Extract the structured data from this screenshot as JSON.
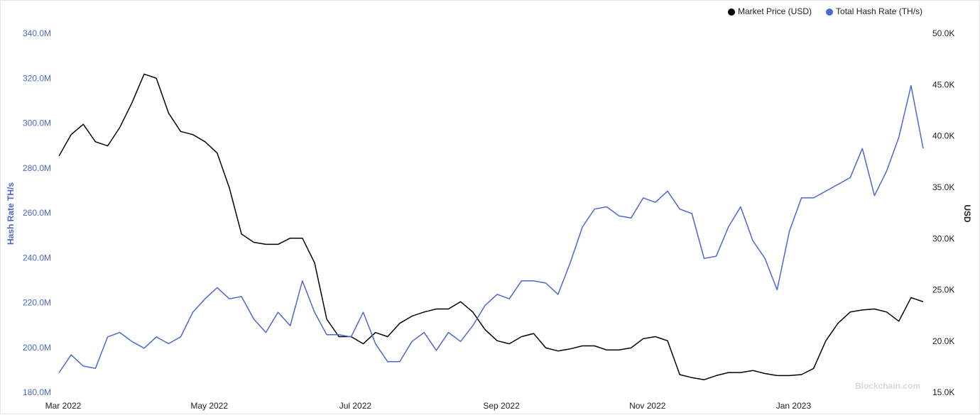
{
  "chart_data": {
    "type": "line",
    "y_label": "Hash Rate TH/s",
    "y2_label": "USD",
    "watermark": "Blockchain.com",
    "legend": "top-right",
    "categories": [
      "Mar 2022",
      null,
      null,
      null,
      null,
      null,
      null,
      null,
      null,
      null,
      null,
      null,
      "May 2022",
      null,
      null,
      null,
      null,
      null,
      null,
      null,
      null,
      null,
      null,
      null,
      "Jul 2022",
      null,
      null,
      null,
      null,
      null,
      null,
      null,
      null,
      null,
      null,
      null,
      "Sep 2022",
      null,
      null,
      null,
      null,
      null,
      null,
      null,
      null,
      null,
      null,
      null,
      "Nov 2022",
      null,
      null,
      null,
      null,
      null,
      null,
      null,
      null,
      null,
      null,
      null,
      "Jan 2023",
      null,
      null,
      null,
      null,
      null,
      null,
      null,
      null,
      null,
      null,
      null
    ],
    "series": [
      {
        "name": "Market Price (USD)",
        "color": "#000000",
        "axis": "y2",
        "values": [
          38100,
          40200,
          41200,
          39500,
          39100,
          40900,
          43300,
          46100,
          45700,
          42300,
          40500,
          40200,
          39500,
          38400,
          35000,
          30500,
          29700,
          29500,
          29500,
          30100,
          30100,
          27700,
          22200,
          20500,
          20500,
          19800,
          20900,
          20500,
          21800,
          22500,
          22900,
          23200,
          23200,
          23900,
          22900,
          21200,
          20100,
          19800,
          20500,
          20800,
          19400,
          19100,
          19300,
          19600,
          19600,
          19200,
          19200,
          19400,
          20300,
          20500,
          20100,
          16800,
          16500,
          16300,
          16700,
          17000,
          17000,
          17200,
          16900,
          16700,
          16700,
          16800,
          17400,
          20100,
          21800,
          22900,
          23100,
          23200,
          22900,
          22000,
          24300,
          23900
        ]
      },
      {
        "name": "Total Hash Rate (TH/s)",
        "color": "#4b67d1",
        "values": [
          189000000,
          197000000,
          192000000,
          191000000,
          205000000,
          207000000,
          203000000,
          200000000,
          205000000,
          202000000,
          205000000,
          216000000,
          222000000,
          227000000,
          222000000,
          223000000,
          213000000,
          207000000,
          216000000,
          210000000,
          230000000,
          216000000,
          206000000,
          206000000,
          205000000,
          216000000,
          202000000,
          194000000,
          194000000,
          203000000,
          207000000,
          199000000,
          207000000,
          203000000,
          210000000,
          219000000,
          224000000,
          222000000,
          230000000,
          230000000,
          229000000,
          224000000,
          238000000,
          254000000,
          262000000,
          263000000,
          259000000,
          258000000,
          267000000,
          265000000,
          270000000,
          262000000,
          260000000,
          240000000,
          241000000,
          254000000,
          263000000,
          248000000,
          240000000,
          226000000,
          252000000,
          267000000,
          267000000,
          270000000,
          273000000,
          276000000,
          289000000,
          268000000,
          279000000,
          294000000,
          317000000,
          289000000
        ]
      }
    ],
    "ylim": [
      180000000,
      340000000
    ],
    "yticks": [
      {
        "value": 340000000,
        "label": "340.0M"
      },
      {
        "value": 320000000,
        "label": "320.0M"
      },
      {
        "value": 300000000,
        "label": "300.0M"
      },
      {
        "value": 280000000,
        "label": "280.0M"
      },
      {
        "value": 260000000,
        "label": "260.0M"
      },
      {
        "value": 240000000,
        "label": "240.0M"
      },
      {
        "value": 220000000,
        "label": "220.0M"
      },
      {
        "value": 200000000,
        "label": "200.0M"
      },
      {
        "value": 180000000,
        "label": "180.0M"
      }
    ],
    "y2lim": [
      15000,
      50000
    ],
    "y2ticks": [
      {
        "value": 50000,
        "label": "50.0K"
      },
      {
        "value": 45000,
        "label": "45.0K"
      },
      {
        "value": 40000,
        "label": "40.0K"
      },
      {
        "value": 35000,
        "label": "35.0K"
      },
      {
        "value": 30000,
        "label": "30.0K"
      },
      {
        "value": 25000,
        "label": "25.0K"
      },
      {
        "value": 20000,
        "label": "20.0K"
      },
      {
        "value": 15000,
        "label": "15.0K"
      }
    ]
  }
}
